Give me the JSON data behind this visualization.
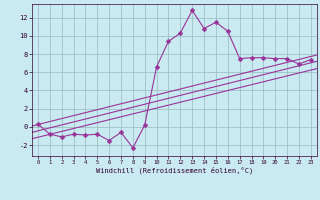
{
  "x_data": [
    0,
    1,
    2,
    3,
    4,
    5,
    6,
    7,
    8,
    9,
    10,
    11,
    12,
    13,
    14,
    15,
    16,
    17,
    18,
    19,
    20,
    21,
    22,
    23
  ],
  "y_main": [
    0.3,
    -0.8,
    -1.1,
    -0.8,
    -0.9,
    -0.8,
    -1.5,
    -0.6,
    -2.3,
    0.2,
    6.6,
    9.4,
    10.3,
    12.8,
    10.8,
    11.5,
    10.5,
    7.5,
    7.6,
    7.6,
    7.5,
    7.5,
    6.9,
    7.4
  ],
  "xlim": [
    -0.5,
    23.5
  ],
  "ylim": [
    -3.2,
    13.5
  ],
  "yticks": [
    -2,
    0,
    2,
    4,
    6,
    8,
    10,
    12
  ],
  "xticks": [
    0,
    1,
    2,
    3,
    4,
    5,
    6,
    7,
    8,
    9,
    10,
    11,
    12,
    13,
    14,
    15,
    16,
    17,
    18,
    19,
    20,
    21,
    22,
    23
  ],
  "xlabel": "Windchill (Refroidissement éolien,°C)",
  "line_color": "#993399",
  "bg_color": "#c8eaf0",
  "grid_color": "#9ab8c0",
  "markersize": 2.5,
  "linewidth": 0.8,
  "reg_line1_y": [
    -0.6,
    7.2
  ],
  "reg_line2_y": [
    -1.3,
    6.4
  ],
  "reg_line3_y": [
    0.1,
    7.9
  ]
}
